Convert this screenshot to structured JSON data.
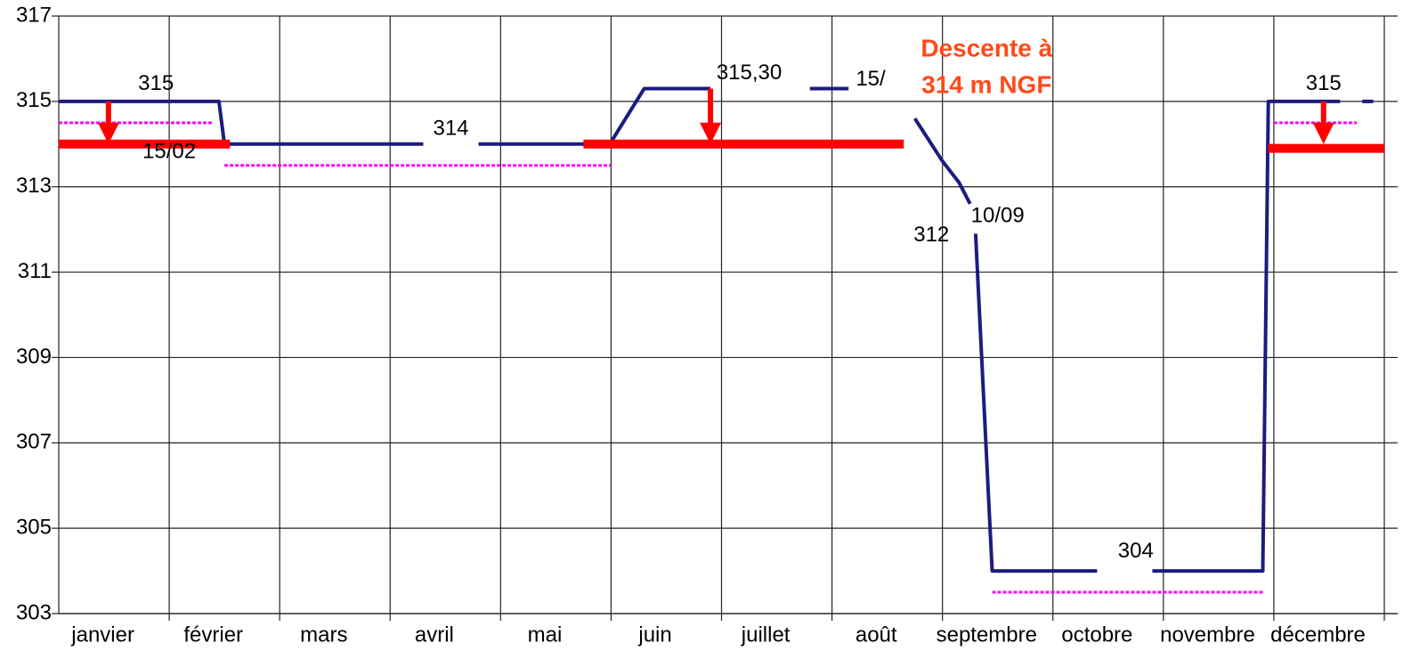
{
  "chart_data": {
    "type": "line",
    "categories": [
      "janvier",
      "février",
      "mars",
      "avril",
      "mai",
      "juin",
      "juillet",
      "août",
      "septembre",
      "octobre",
      "novembre",
      "décembre"
    ],
    "xlim": [
      0,
      12
    ],
    "ylim": [
      303,
      317
    ],
    "yticks": [
      303,
      305,
      307,
      309,
      311,
      313,
      315,
      317
    ],
    "grid": true,
    "series": [
      {
        "color": "#1c1c80",
        "width": 4,
        "dash": false,
        "x": [
          0,
          1.45,
          1.5,
          3.3,
          null,
          3.8,
          4.95,
          5.0,
          5.3,
          5.9,
          null,
          6.8,
          7.15,
          null,
          7.75,
          8.0,
          8.15,
          8.25,
          null,
          8.3,
          8.45,
          9.4,
          null,
          9.9,
          10.9,
          10.95,
          11.1,
          11.6,
          null,
          11.8,
          11.9
        ],
        "values": [
          315,
          315,
          314,
          314,
          null,
          314,
          314,
          314.05,
          315.3,
          315.3,
          null,
          315.3,
          315.3,
          null,
          314.6,
          313.6,
          313.1,
          312.6,
          null,
          311.9,
          304,
          304,
          null,
          304,
          304,
          315,
          315,
          315,
          null,
          315,
          315
        ]
      },
      {
        "color": "#ff00ff",
        "width": 3,
        "dash": true,
        "x": [
          0,
          1.4,
          null,
          1.5,
          5.0,
          null,
          8.45,
          10.9,
          null,
          11.0,
          11.75
        ],
        "values": [
          314.5,
          314.5,
          null,
          313.5,
          313.5,
          null,
          303.5,
          303.5,
          null,
          314.5,
          314.5
        ]
      },
      {
        "color": "#ff0000",
        "width": 10,
        "dash": false,
        "x": [
          0,
          1.55,
          null,
          4.75,
          7.65,
          null,
          10.95,
          12
        ],
        "values": [
          314,
          314,
          null,
          314,
          314,
          null,
          313.9,
          313.9
        ]
      }
    ],
    "arrows": [
      {
        "x": 0.45,
        "from": 315,
        "to": 314,
        "color": "#ff0000"
      },
      {
        "x": 5.9,
        "from": 315.3,
        "to": 314,
        "color": "#ff0000"
      },
      {
        "x": 11.45,
        "from": 315,
        "to": 314,
        "color": "#ff0000"
      }
    ],
    "annotations": [
      {
        "text": "315",
        "x": 0.88,
        "y": 315.4,
        "color": "#000000",
        "bold": false
      },
      {
        "text": "15/02",
        "x": 1.0,
        "y": 313.8,
        "color": "#000000",
        "bold": false
      },
      {
        "text": "314",
        "x": 3.55,
        "y": 314.35,
        "color": "#000000",
        "bold": false
      },
      {
        "text": "315,30",
        "x": 6.25,
        "y": 315.65,
        "color": "#000000",
        "bold": false
      },
      {
        "text": "15/",
        "x": 7.35,
        "y": 315.5,
        "color": "#000000",
        "bold": false
      },
      {
        "text": "Descente à",
        "x": 8.4,
        "y": 316.2,
        "color": "#ff4a1a",
        "bold": true
      },
      {
        "text": "314 m NGF",
        "x": 8.4,
        "y": 315.35,
        "color": "#ff4a1a",
        "bold": true
      },
      {
        "text": "312",
        "x": 7.9,
        "y": 311.85,
        "color": "#000000",
        "bold": false
      },
      {
        "text": "10/09",
        "x": 8.5,
        "y": 312.3,
        "color": "#000000",
        "bold": false
      },
      {
        "text": "304",
        "x": 9.75,
        "y": 304.45,
        "color": "#000000",
        "bold": false
      },
      {
        "text": "315",
        "x": 11.45,
        "y": 315.4,
        "color": "#000000",
        "bold": false
      }
    ]
  }
}
